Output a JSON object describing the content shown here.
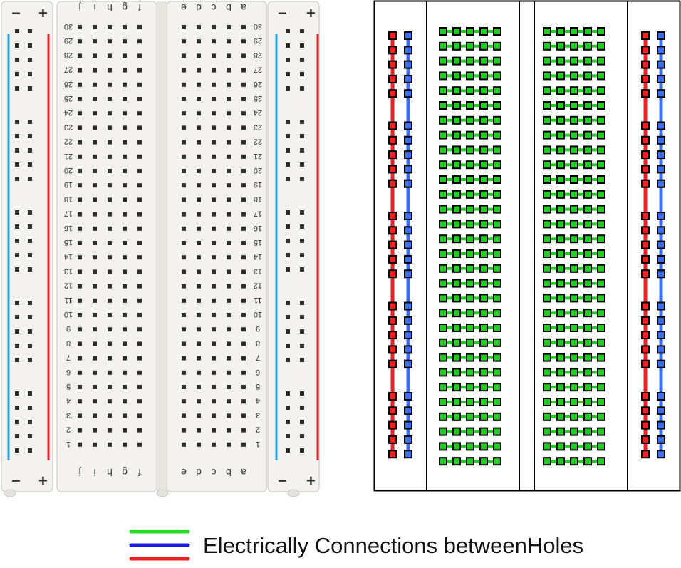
{
  "photo": {
    "rail_minus_label": "−",
    "rail_plus_label": "+",
    "column_letters_left": [
      "f",
      "g",
      "h",
      "i",
      "j"
    ],
    "column_letters_right": [
      "a",
      "b",
      "c",
      "d",
      "e"
    ],
    "row_numbers": [
      "1",
      "2",
      "3",
      "4",
      "5",
      "6",
      "7",
      "8",
      "9",
      "10",
      "11",
      "12",
      "13",
      "14",
      "15",
      "16",
      "17",
      "18",
      "19",
      "20",
      "21",
      "22",
      "23",
      "24",
      "25",
      "26",
      "27",
      "28",
      "29",
      "30"
    ],
    "colors": {
      "board": "#f3f2ee",
      "hole": "#2e2e2e",
      "rail_minus_stripe": "#2aa3d8",
      "rail_plus_stripe": "#e0262b"
    }
  },
  "schematic": {
    "rows": 30,
    "terminal_columns_per_side": 5,
    "rail_hole_groups": 5,
    "rail_holes_per_group": 5,
    "colors": {
      "terminal_strip": "#22cc22",
      "power_rail": "#ee2222",
      "ground_rail": "#3a6ff0",
      "outline": "#000000"
    }
  },
  "legend": {
    "label": "Electrically Connections betweenHoles",
    "colors": [
      "#22dd22",
      "#1a1ae0",
      "#ee2020"
    ]
  }
}
